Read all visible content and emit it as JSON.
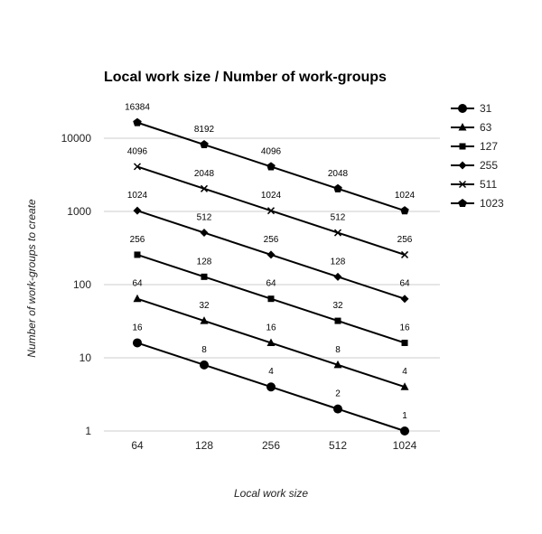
{
  "chart_data": {
    "type": "line",
    "title": "Local work size / Number of work-groups",
    "xlabel": "Local work size",
    "ylabel": "Number of work-groups to create",
    "y_scale": "log",
    "ylim": [
      1,
      10000
    ],
    "y_ticks": [
      "1",
      "10",
      "100",
      "1000",
      "10000"
    ],
    "categories": [
      "64",
      "128",
      "256",
      "512",
      "1024"
    ],
    "grid": true,
    "legend_position": "right",
    "series": [
      {
        "name": "31",
        "marker": "circle",
        "values": [
          16,
          8,
          4,
          2,
          1
        ]
      },
      {
        "name": "63",
        "marker": "triangle",
        "values": [
          64,
          32,
          16,
          8,
          4
        ]
      },
      {
        "name": "127",
        "marker": "square",
        "values": [
          256,
          128,
          64,
          32,
          16
        ]
      },
      {
        "name": "255",
        "marker": "diamond",
        "values": [
          1024,
          512,
          256,
          128,
          64
        ]
      },
      {
        "name": "511",
        "marker": "x",
        "values": [
          4096,
          2048,
          1024,
          512,
          256
        ]
      },
      {
        "name": "1023",
        "marker": "pentagon",
        "values": [
          16384,
          8192,
          4096,
          2048,
          1024
        ]
      }
    ]
  }
}
